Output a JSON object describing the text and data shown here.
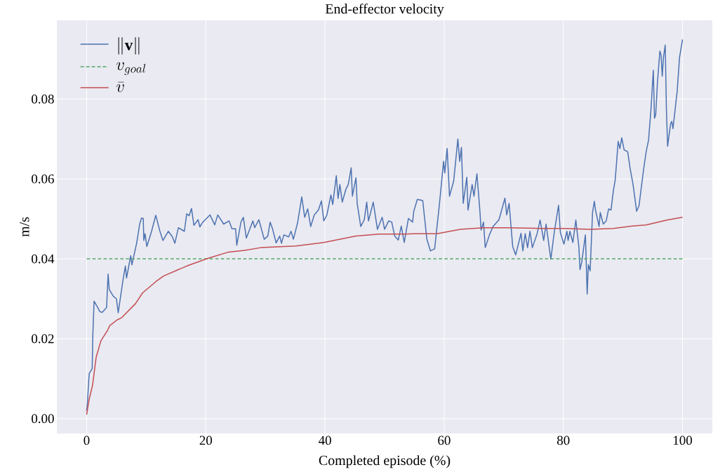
{
  "chart_data": {
    "type": "line",
    "title": "End-effector velocity",
    "xlabel": "Completed episode (%)",
    "ylabel": "m/s",
    "xlim": [
      -5,
      105
    ],
    "ylim": [
      -0.0037,
      0.0997
    ],
    "xticks": [
      0,
      20,
      40,
      60,
      80,
      100
    ],
    "yticks": [
      {
        "value": 0,
        "label": "0.00"
      },
      {
        "value": 0.02,
        "label": "0.02"
      },
      {
        "value": 0.04,
        "label": "0.04"
      },
      {
        "value": 0.06,
        "label": "0.06"
      },
      {
        "value": 0.08,
        "label": "0.08"
      }
    ],
    "grid": true,
    "legend": "top left",
    "series": [
      {
        "name": "\\|\\mathbf{v}\\|",
        "color": "#4c72b0",
        "line_style": "solid",
        "x": [
          0,
          0.1,
          0.43,
          0.93,
          1.05,
          1.25,
          1.9,
          2.2,
          2.6,
          3.35,
          3.6,
          3.8,
          4.5,
          5.0,
          5.3,
          6.1,
          6.5,
          6.7,
          7.4,
          7.6,
          8.4,
          8.9,
          9.2,
          9.5,
          9.6,
          9.8,
          10.1,
          10.9,
          11.6,
          11.9,
          12.3,
          12.8,
          13.7,
          14.4,
          14.8,
          15.4,
          16.4,
          16.8,
          17.2,
          17.6,
          18.0,
          18.7,
          19.0,
          19.5,
          20.7,
          21.5,
          22.0,
          23.0,
          23.9,
          24.4,
          25.0,
          25.2,
          25.9,
          26.3,
          26.8,
          27.9,
          28.2,
          28.9,
          29.8,
          30.4,
          30.8,
          31.2,
          31.8,
          32.4,
          32.7,
          33.1,
          33.9,
          34.3,
          34.7,
          35.4,
          36.1,
          36.6,
          37.1,
          37.6,
          38.2,
          38.9,
          39.4,
          39.8,
          40.3,
          41.0,
          41.3,
          41.9,
          42.2,
          42.5,
          42.9,
          43.5,
          43.9,
          44.4,
          44.6,
          45.2,
          45.4,
          46.0,
          46.6,
          47.0,
          47.3,
          48.1,
          48.8,
          49.6,
          50.0,
          50.7,
          51.2,
          51.7,
          52.3,
          52.8,
          53.3,
          54.0,
          54.7,
          54.9,
          55.5,
          56.4,
          57.1,
          57.7,
          58.4,
          59.2,
          59.9,
          60.1,
          60.5,
          60.9,
          61.6,
          62.3,
          62.6,
          62.9,
          63.2,
          63.8,
          64.0,
          64.7,
          65.0,
          65.5,
          66.0,
          66.2,
          66.6,
          66.9,
          67.6,
          68.2,
          69.2,
          70.2,
          70.5,
          70.9,
          71.5,
          72.0,
          72.9,
          73.2,
          73.6,
          74.0,
          74.4,
          74.8,
          75.6,
          76.1,
          76.7,
          77.1,
          77.9,
          78.5,
          79.2,
          79.5,
          80.1,
          80.6,
          80.8,
          81.1,
          81.6,
          82.1,
          82.6,
          82.8,
          83.1,
          83.7,
          84.0,
          84.2,
          84.5,
          84.9,
          85.2,
          85.4,
          86.0,
          86.2,
          86.7,
          87.2,
          87.6,
          88.0,
          88.4,
          88.7,
          88.9,
          89.2,
          89.5,
          89.8,
          90.2,
          90.8,
          91.2,
          91.7,
          92.3,
          92.7,
          93.2,
          93.5,
          93.9,
          94.3,
          94.7,
          95.1,
          95.3,
          95.5,
          95.8,
          96.2,
          96.4,
          96.6,
          96.8,
          97.1,
          97.3,
          97.5,
          98.0,
          98.2,
          98.4,
          99.1,
          99.5,
          100
        ],
        "values": [
          0.002,
          0.0032,
          0.0113,
          0.0125,
          0.0214,
          0.0294,
          0.0277,
          0.0268,
          0.0266,
          0.0278,
          0.0362,
          0.0323,
          0.0306,
          0.03,
          0.0265,
          0.0347,
          0.0382,
          0.0352,
          0.0408,
          0.0385,
          0.044,
          0.0487,
          0.0502,
          0.0501,
          0.0446,
          0.0463,
          0.0431,
          0.0469,
          0.0509,
          0.0492,
          0.0469,
          0.0446,
          0.0469,
          0.0455,
          0.0439,
          0.0478,
          0.0469,
          0.0513,
          0.0508,
          0.0526,
          0.0484,
          0.0498,
          0.048,
          0.0492,
          0.051,
          0.0485,
          0.051,
          0.0487,
          0.0495,
          0.0475,
          0.0475,
          0.0434,
          0.0492,
          0.0504,
          0.0452,
          0.0495,
          0.0478,
          0.0498,
          0.0449,
          0.0457,
          0.0492,
          0.0475,
          0.044,
          0.0457,
          0.0439,
          0.046,
          0.0455,
          0.0469,
          0.0449,
          0.049,
          0.0555,
          0.0504,
          0.0525,
          0.0481,
          0.051,
          0.0522,
          0.0545,
          0.0495,
          0.0509,
          0.056,
          0.0536,
          0.0608,
          0.0551,
          0.0586,
          0.0542,
          0.0574,
          0.0586,
          0.0628,
          0.0557,
          0.0603,
          0.0539,
          0.0481,
          0.0498,
          0.0542,
          0.0495,
          0.0542,
          0.0474,
          0.0504,
          0.0474,
          0.0495,
          0.0492,
          0.0457,
          0.0447,
          0.0482,
          0.0441,
          0.0501,
          0.0492,
          0.0519,
          0.0549,
          0.0546,
          0.0449,
          0.042,
          0.0425,
          0.0536,
          0.0644,
          0.0615,
          0.0676,
          0.0557,
          0.0595,
          0.07,
          0.0644,
          0.0679,
          0.0539,
          0.0604,
          0.0522,
          0.0586,
          0.0557,
          0.0613,
          0.0519,
          0.0472,
          0.0492,
          0.0428,
          0.046,
          0.0481,
          0.0498,
          0.0552,
          0.051,
          0.0539,
          0.0431,
          0.041,
          0.0464,
          0.042,
          0.0463,
          0.0428,
          0.0469,
          0.0428,
          0.0463,
          0.0497,
          0.0446,
          0.0487,
          0.0399,
          0.0469,
          0.0534,
          0.0466,
          0.0437,
          0.0469,
          0.0446,
          0.0469,
          0.0441,
          0.0497,
          0.0431,
          0.0373,
          0.0393,
          0.046,
          0.0312,
          0.0385,
          0.037,
          0.0516,
          0.0544,
          0.0522,
          0.0481,
          0.0516,
          0.0487,
          0.0495,
          0.0525,
          0.0522,
          0.0571,
          0.0597,
          0.0635,
          0.0694,
          0.0676,
          0.0703,
          0.0673,
          0.0668,
          0.0627,
          0.0586,
          0.0519,
          0.0533,
          0.0592,
          0.0627,
          0.0668,
          0.0697,
          0.0773,
          0.0872,
          0.0752,
          0.0761,
          0.0843,
          0.092,
          0.091,
          0.0857,
          0.0904,
          0.0935,
          0.0773,
          0.0682,
          0.0738,
          0.0744,
          0.0726,
          0.0819,
          0.0904,
          0.0949
        ]
      },
      {
        "name": "v_{goal}",
        "color": "#55a868",
        "line_style": "dashed",
        "x": [
          0,
          100
        ],
        "values": [
          0.04,
          0.04
        ]
      },
      {
        "name": "\\bar{v}",
        "color": "#c44e52",
        "line_style": "solid",
        "x": [
          0,
          0.43,
          1.0,
          1.6,
          2.4,
          3.5,
          3.9,
          5.1,
          5.9,
          8.2,
          9.4,
          11.7,
          12.9,
          16.8,
          20.3,
          23.8,
          26.5,
          29.2,
          35.1,
          39.8,
          45.2,
          49.1,
          53.4,
          54.9,
          58.8,
          62.7,
          66.6,
          70.5,
          76.4,
          80.2,
          84.5,
          88.4,
          91.6,
          93.9,
          97.4,
          100
        ],
        "values": [
          0.001,
          0.0049,
          0.0084,
          0.0154,
          0.0195,
          0.0221,
          0.0233,
          0.0247,
          0.0253,
          0.0288,
          0.0315,
          0.0344,
          0.0357,
          0.0382,
          0.0401,
          0.0417,
          0.0421,
          0.0428,
          0.0432,
          0.0441,
          0.0457,
          0.0462,
          0.0462,
          0.0463,
          0.0463,
          0.0474,
          0.0478,
          0.0478,
          0.0476,
          0.0476,
          0.0474,
          0.0476,
          0.0482,
          0.0485,
          0.0497,
          0.0504
        ]
      }
    ]
  }
}
